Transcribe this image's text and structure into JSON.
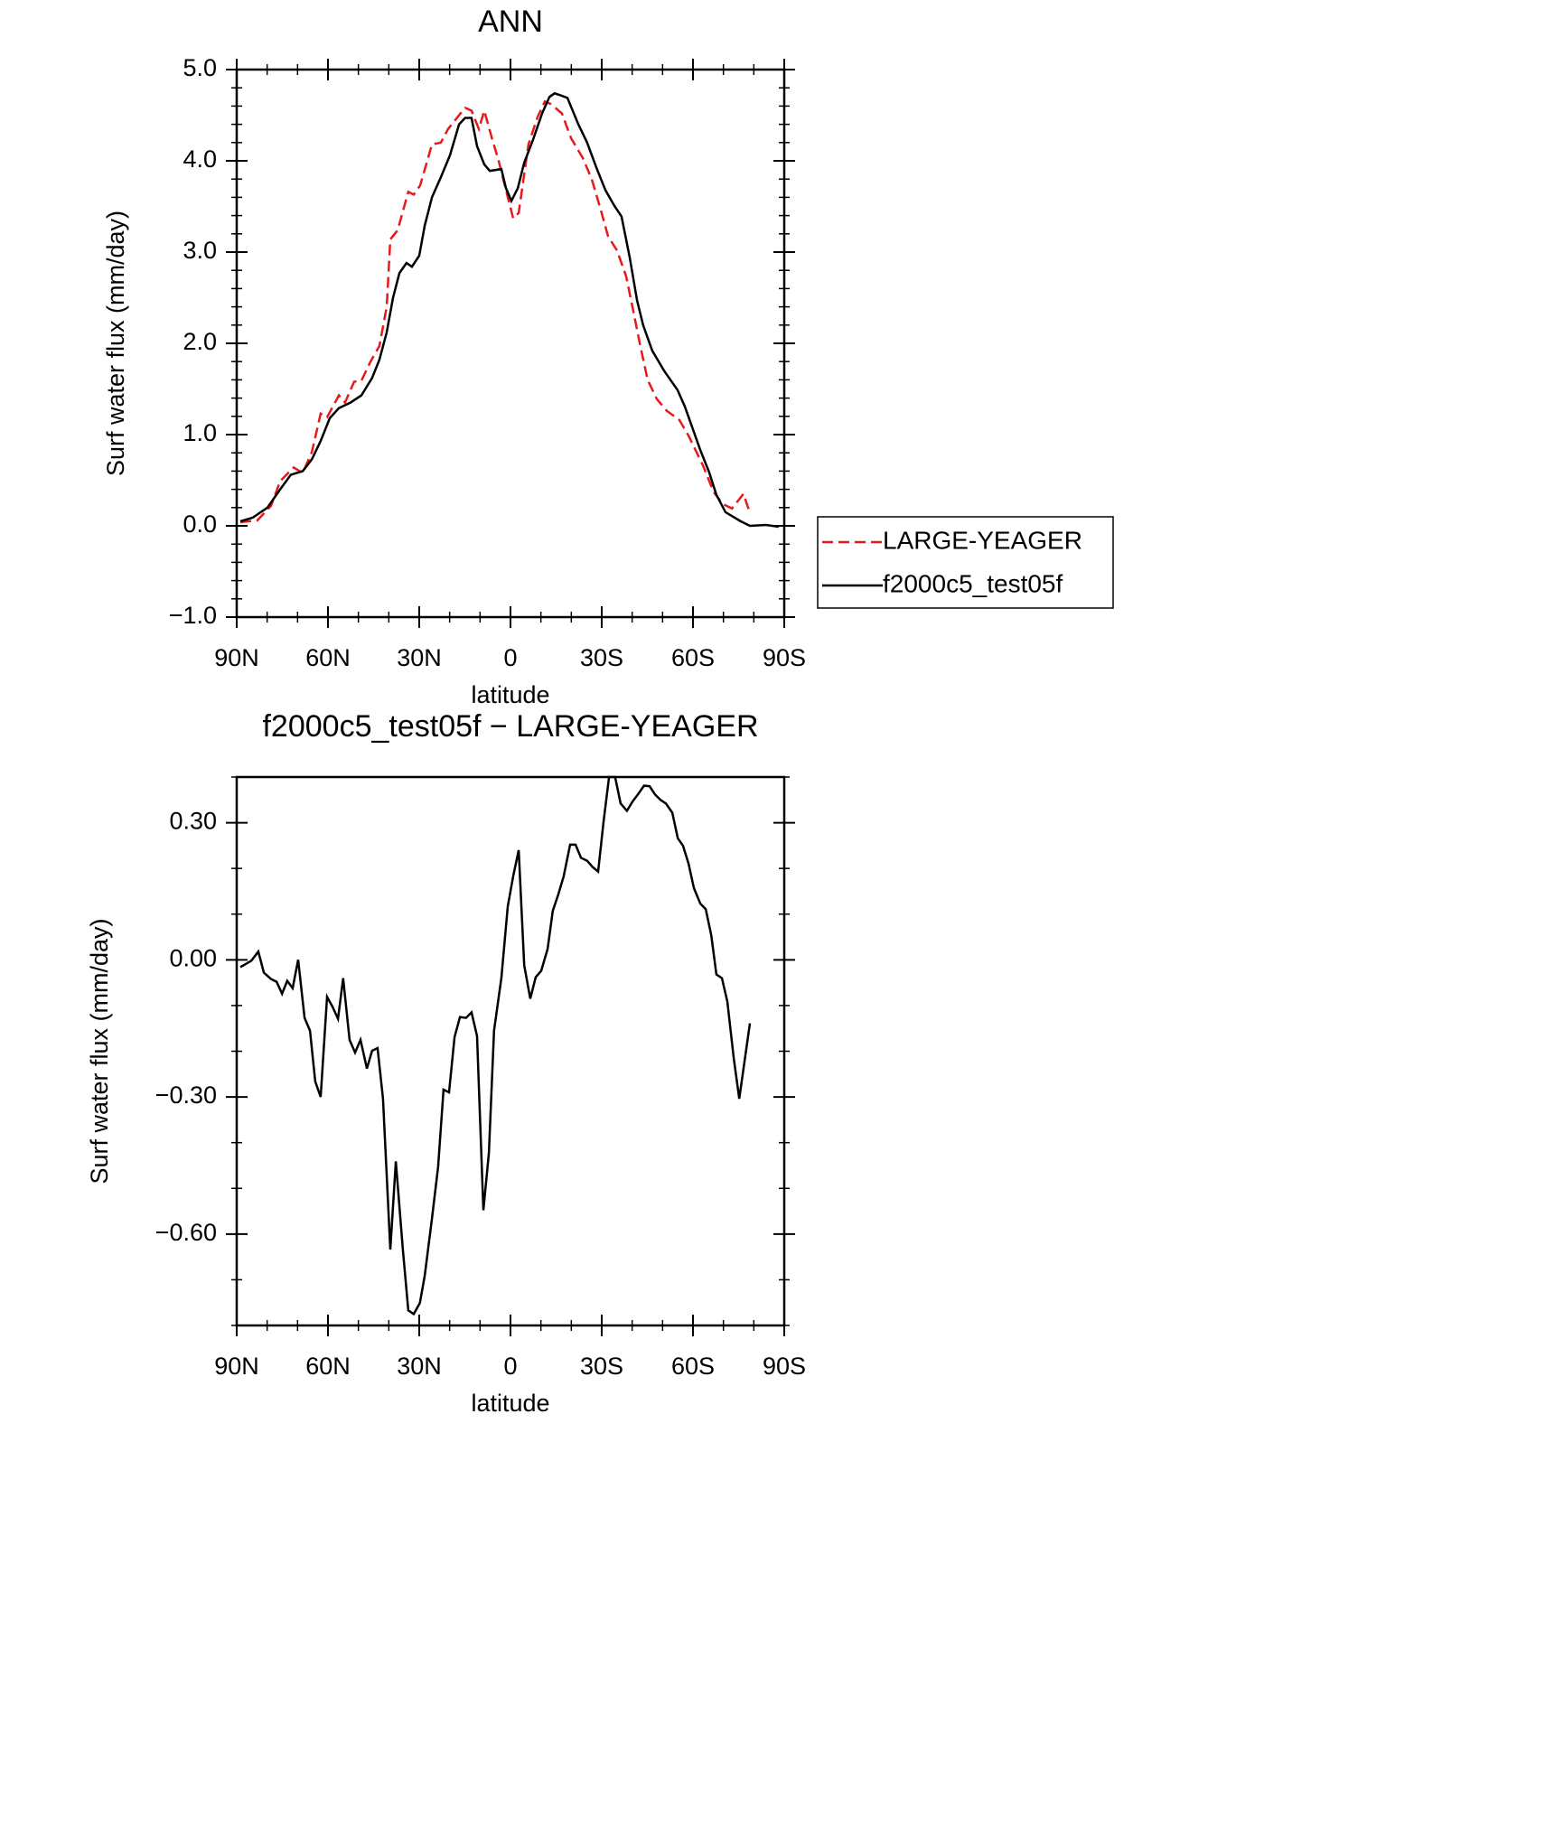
{
  "chart_data": [
    {
      "type": "line",
      "title": "ANN",
      "xlabel": "latitude",
      "ylabel": "Surf water flux (mm/day)",
      "xlim": [
        90,
        -90
      ],
      "xticks": [
        {
          "value": 90,
          "label": "90N"
        },
        {
          "value": 60,
          "label": "60N"
        },
        {
          "value": 30,
          "label": "30N"
        },
        0,
        {
          "value": -30,
          "label": "30S"
        },
        {
          "value": -60,
          "label": "60S"
        },
        {
          "value": -90,
          "label": "90S"
        }
      ],
      "ylim": [
        -1,
        5
      ],
      "yticks": [
        {
          "value": -1,
          "label": "−1.0"
        },
        {
          "value": 0,
          "label": "0.0"
        },
        {
          "value": 1,
          "label": "1.0"
        },
        {
          "value": 2,
          "label": "2.0"
        },
        {
          "value": 3,
          "label": "3.0"
        },
        {
          "value": 4,
          "label": "4.0"
        },
        {
          "value": 5,
          "label": "5.0"
        }
      ],
      "legend": "right",
      "series": [
        {
          "name": "LARGE-YEAGER",
          "color": "#e8191c",
          "linestyle": "dashed",
          "x": [
            88.8,
            83.2,
            78.7,
            75.7,
            71.3,
            68.3,
            65.3,
            62.4,
            60.3,
            56.4,
            54.4,
            51.4,
            49.0,
            46.0,
            43.1,
            40.7,
            39.5,
            37.1,
            33.6,
            31.8,
            29.7,
            25.8,
            22.9,
            20.5,
            16.9,
            14.9,
            12.8,
            10.4,
            8.6,
            6.2,
            3.9,
            1.5,
            -0.9,
            -2.7,
            -5.9,
            -8.9,
            -11.3,
            -13.4,
            -16.9,
            -19.9,
            -23.8,
            -26.7,
            -29.7,
            -32.1,
            -35.0,
            -38.0,
            -40.1,
            -42.5,
            -45.1,
            -48.1,
            -51.4,
            -55.5,
            -58.5,
            -63.3,
            -66.8,
            -69.8,
            -72.8,
            -76.6,
            -78.7
          ],
          "values": [
            0.04,
            0.06,
            0.22,
            0.49,
            0.64,
            0.58,
            0.81,
            1.23,
            1.19,
            1.43,
            1.35,
            1.58,
            1.59,
            1.8,
            1.97,
            2.4,
            3.14,
            3.24,
            3.66,
            3.63,
            3.73,
            4.18,
            4.2,
            4.35,
            4.5,
            4.58,
            4.55,
            4.35,
            4.55,
            4.26,
            4.0,
            3.68,
            3.37,
            3.43,
            4.18,
            4.48,
            4.65,
            4.62,
            4.52,
            4.25,
            4.03,
            3.8,
            3.46,
            3.17,
            3.02,
            2.74,
            2.4,
            2.0,
            1.6,
            1.39,
            1.26,
            1.16,
            0.99,
            0.66,
            0.37,
            0.24,
            0.19,
            0.35,
            0.14
          ]
        },
        {
          "name": "f2000c5_test05f",
          "color": "#000000",
          "linestyle": "solid",
          "x": [
            88.8,
            84.7,
            79.9,
            75.7,
            72.2,
            68.3,
            65.3,
            62.4,
            59.4,
            56.4,
            52.6,
            49.0,
            45.5,
            43.1,
            40.7,
            38.6,
            36.5,
            34.2,
            32.4,
            30.0,
            28.2,
            25.8,
            22.9,
            19.9,
            16.9,
            14.9,
            12.8,
            11.0,
            8.6,
            6.8,
            3.0,
            1.5,
            -0.3,
            -2.4,
            -4.5,
            -7.4,
            -10.4,
            -12.8,
            -14.5,
            -16.3,
            -18.7,
            -22.3,
            -25.2,
            -28.2,
            -31.2,
            -34.1,
            -36.5,
            -39.2,
            -41.6,
            -43.6,
            -46.6,
            -50.5,
            -54.9,
            -57.3,
            -62.4,
            -65.3,
            -67.7,
            -70.7,
            -75.7,
            -78.7,
            -84.0,
            -88.2
          ],
          "values": [
            0.05,
            0.09,
            0.2,
            0.4,
            0.56,
            0.6,
            0.73,
            0.93,
            1.18,
            1.29,
            1.35,
            1.43,
            1.62,
            1.82,
            2.12,
            2.5,
            2.77,
            2.88,
            2.84,
            2.96,
            3.29,
            3.6,
            3.82,
            4.06,
            4.4,
            4.47,
            4.47,
            4.16,
            3.96,
            3.89,
            3.91,
            3.7,
            3.56,
            3.7,
            3.98,
            4.23,
            4.52,
            4.7,
            4.74,
            4.72,
            4.69,
            4.4,
            4.2,
            3.93,
            3.68,
            3.51,
            3.39,
            2.94,
            2.47,
            2.2,
            1.92,
            1.7,
            1.49,
            1.31,
            0.83,
            0.59,
            0.34,
            0.15,
            0.05,
            0.0,
            0.01,
            -0.01
          ]
        }
      ]
    },
    {
      "type": "line",
      "title": "f2000c5_test05f − LARGE-YEAGER",
      "xlabel": "latitude",
      "ylabel": "Surf water flux (mm/day)",
      "xlim": [
        90,
        -90
      ],
      "xticks": [
        {
          "value": 90,
          "label": "90N"
        },
        {
          "value": 60,
          "label": "60N"
        },
        {
          "value": 30,
          "label": "30N"
        },
        0,
        {
          "value": -30,
          "label": "30S"
        },
        {
          "value": -60,
          "label": "60S"
        },
        {
          "value": -90,
          "label": "90S"
        }
      ],
      "ylim": [
        -0.8,
        0.4
      ],
      "yticks": [
        {
          "value": -0.6,
          "label": "−0.60"
        },
        {
          "value": -0.3,
          "label": "−0.30"
        },
        {
          "value": 0,
          "label": "0.00"
        },
        {
          "value": 0.3,
          "label": "0.30"
        }
      ],
      "series": [
        {
          "color": "#000000",
          "linestyle": "solid",
          "x": [
            88.8,
            85.2,
            82.9,
            81.1,
            78.7,
            76.9,
            75.1,
            73.4,
            71.6,
            69.8,
            67.7,
            65.9,
            64.2,
            62.4,
            60.3,
            58.5,
            56.7,
            55.0,
            52.9,
            51.1,
            49.3,
            47.2,
            45.5,
            43.7,
            41.9,
            39.5,
            37.7,
            35.4,
            33.6,
            31.8,
            29.8,
            28.2,
            25.8,
            23.8,
            22.0,
            20.2,
            18.4,
            16.6,
            14.6,
            12.8,
            11.0,
            8.9,
            7.1,
            5.4,
            3.0,
            0.9,
            -0.9,
            -2.7,
            -4.5,
            -6.5,
            -8.3,
            -10.1,
            -12.2,
            -13.9,
            -15.7,
            -17.5,
            -19.6,
            -21.4,
            -23.2,
            -25.2,
            -27.0,
            -28.8,
            -30.6,
            -32.4,
            -34.4,
            -36.2,
            -38.3,
            -40.1,
            -41.9,
            -43.9,
            -45.7,
            -47.5,
            -49.3,
            -51.1,
            -53.2,
            -55.0,
            -56.7,
            -58.5,
            -60.3,
            -62.4,
            -64.2,
            -66.0,
            -67.7,
            -69.5,
            -71.3,
            -73.4,
            -75.2,
            -78.7
          ],
          "values": [
            -0.016,
            -0.002,
            0.018,
            -0.028,
            -0.042,
            -0.048,
            -0.074,
            -0.046,
            -0.062,
            0.0,
            -0.127,
            -0.155,
            -0.266,
            -0.3,
            -0.081,
            -0.103,
            -0.129,
            -0.04,
            -0.175,
            -0.203,
            -0.175,
            -0.238,
            -0.199,
            -0.193,
            -0.304,
            -0.634,
            -0.441,
            -0.632,
            -0.767,
            -0.775,
            -0.751,
            -0.691,
            -0.566,
            -0.453,
            -0.284,
            -0.29,
            -0.169,
            -0.125,
            -0.127,
            -0.115,
            -0.167,
            -0.548,
            -0.423,
            -0.155,
            -0.04,
            0.117,
            0.183,
            0.24,
            -0.012,
            -0.085,
            -0.038,
            -0.024,
            0.024,
            0.107,
            0.143,
            0.183,
            0.252,
            0.252,
            0.223,
            0.217,
            0.203,
            0.193,
            0.302,
            0.4,
            0.4,
            0.342,
            0.326,
            0.346,
            0.362,
            0.381,
            0.38,
            0.362,
            0.35,
            0.342,
            0.322,
            0.266,
            0.25,
            0.211,
            0.157,
            0.123,
            0.111,
            0.054,
            -0.032,
            -0.04,
            -0.091,
            -0.215,
            -0.304,
            -0.139
          ]
        }
      ]
    }
  ]
}
